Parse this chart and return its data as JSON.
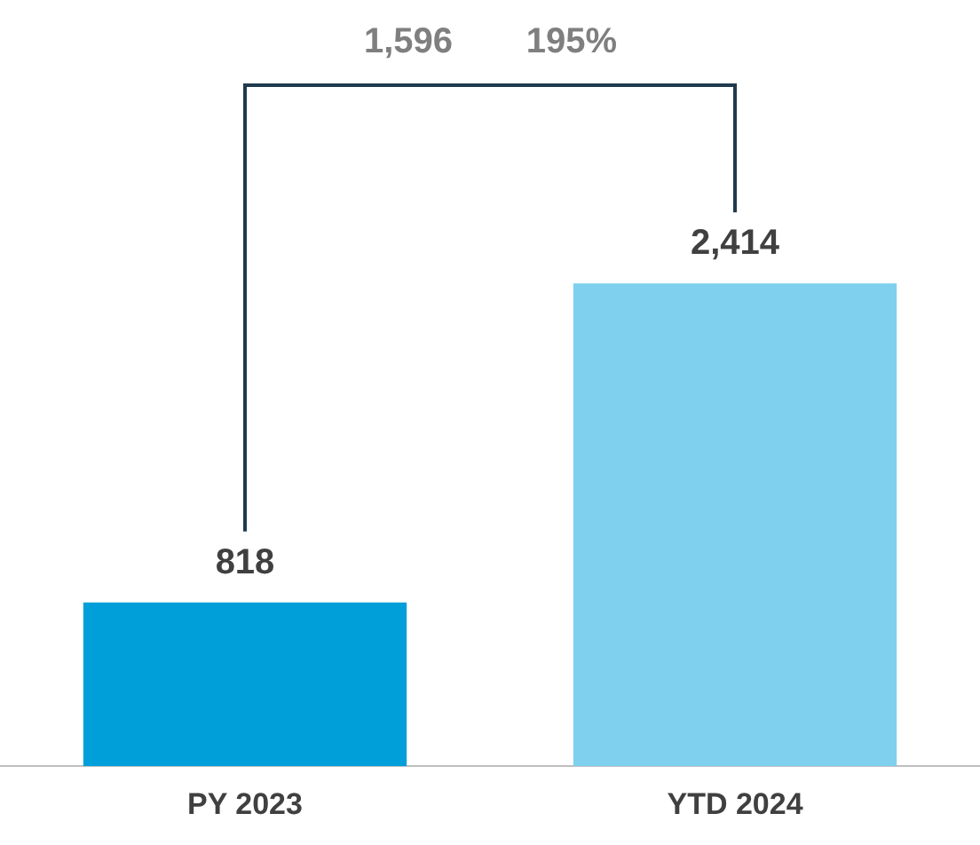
{
  "chart_data": {
    "type": "bar",
    "categories": [
      "PY 2023",
      "YTD 2024"
    ],
    "values": [
      818,
      2414
    ],
    "colors": [
      "#009fda",
      "#7fcfee"
    ],
    "value_labels": [
      "818",
      "2,414"
    ],
    "grid": false,
    "legend": false,
    "annotations": [
      "1,596",
      "195%"
    ]
  }
}
